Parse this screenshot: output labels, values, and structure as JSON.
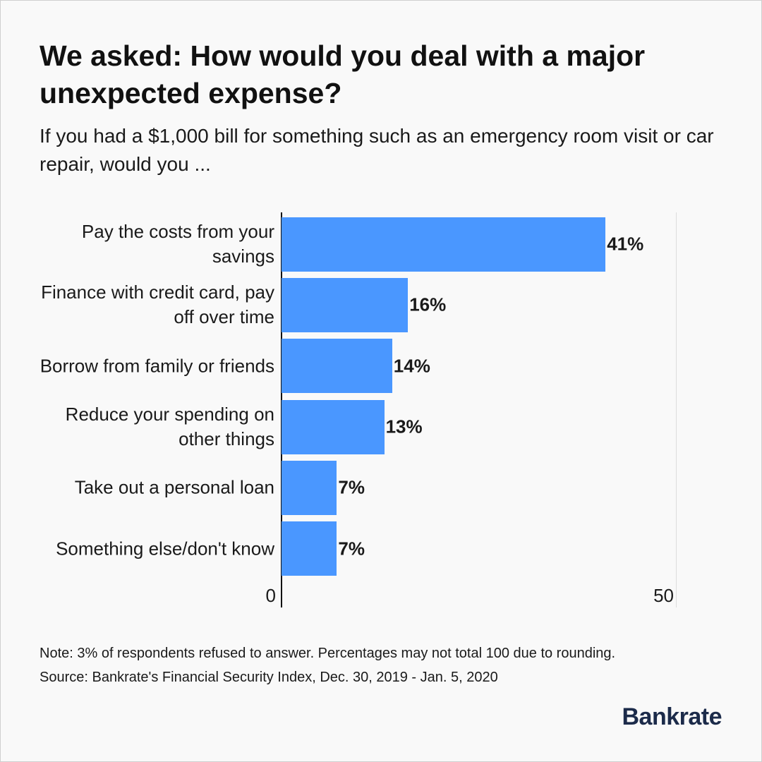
{
  "chart_data": {
    "type": "bar",
    "orientation": "horizontal",
    "title": "We asked: How would you deal with a major unexpected expense?",
    "subtitle": "If you had a $1,000 bill for something such as an emergency room visit or car repair, would you ...",
    "categories": [
      "Pay the costs from your savings",
      "Finance with credit card, pay off over time",
      "Borrow from family or friends",
      "Reduce your spending on other things",
      "Take out a personal loan",
      "Something else/don't know"
    ],
    "values": [
      41,
      16,
      14,
      13,
      7,
      7
    ],
    "value_labels": [
      "41%",
      "16%",
      "14%",
      "13%",
      "7%",
      "7%"
    ],
    "color": "#4a97ff",
    "xlim": [
      0,
      50
    ],
    "xticks": [
      0,
      50
    ],
    "grid": true,
    "notes": [
      "Note: 3% of respondents refused to answer. Percentages may not total 100 due to rounding.",
      "Source: Bankrate's Financial Security Index, Dec. 30, 2019 - Jan. 5, 2020"
    ],
    "brand": "Bankrate"
  }
}
